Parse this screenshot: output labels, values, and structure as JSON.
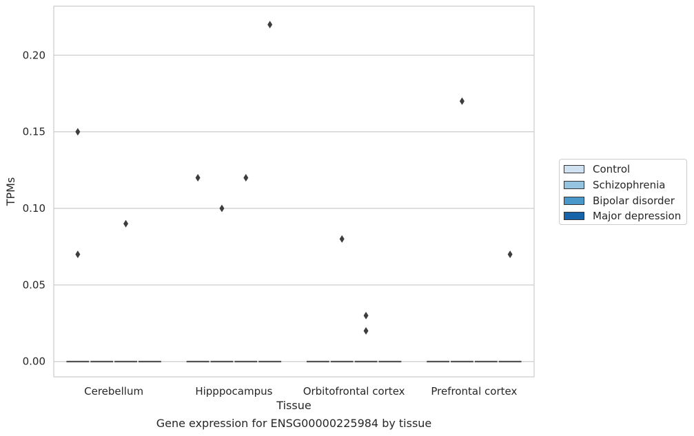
{
  "chart_data": {
    "type": "boxplot",
    "title": "Gene expression for ENSG00000225984 by tissue",
    "xlabel": "Tissue",
    "ylabel": "TPMs",
    "ylim": [
      -0.01,
      0.232
    ],
    "yticks": [
      0.0,
      0.05,
      0.1,
      0.15,
      0.2
    ],
    "ytick_labels": [
      "0.00",
      "0.05",
      "0.10",
      "0.15",
      "0.20"
    ],
    "grid": "horizontal",
    "legend_position": "right",
    "categories": [
      "Cerebellum",
      "Hipppocampus",
      "Orbitofrontal cortex",
      "Prefrontal cortex"
    ],
    "series": [
      {
        "name": "Control",
        "color": "#d0e1f2",
        "medians": [
          0,
          0,
          0,
          0
        ],
        "outliers": [
          [
            0.15,
            0.07
          ],
          [
            0.12
          ],
          [],
          []
        ]
      },
      {
        "name": "Schizophrenia",
        "color": "#94c4df",
        "medians": [
          0,
          0,
          0,
          0
        ],
        "outliers": [
          [],
          [
            0.1
          ],
          [
            0.08
          ],
          [
            0.17
          ]
        ]
      },
      {
        "name": "Bipolar disorder",
        "color": "#4a98c9",
        "medians": [
          0,
          0,
          0,
          0
        ],
        "outliers": [
          [
            0.09
          ],
          [
            0.12
          ],
          [
            0.03,
            0.02
          ],
          []
        ]
      },
      {
        "name": "Major depression",
        "color": "#1764ab",
        "medians": [
          0,
          0,
          0,
          0
        ],
        "outliers": [
          [],
          [
            0.22
          ],
          [],
          [
            0.07
          ]
        ]
      }
    ]
  }
}
